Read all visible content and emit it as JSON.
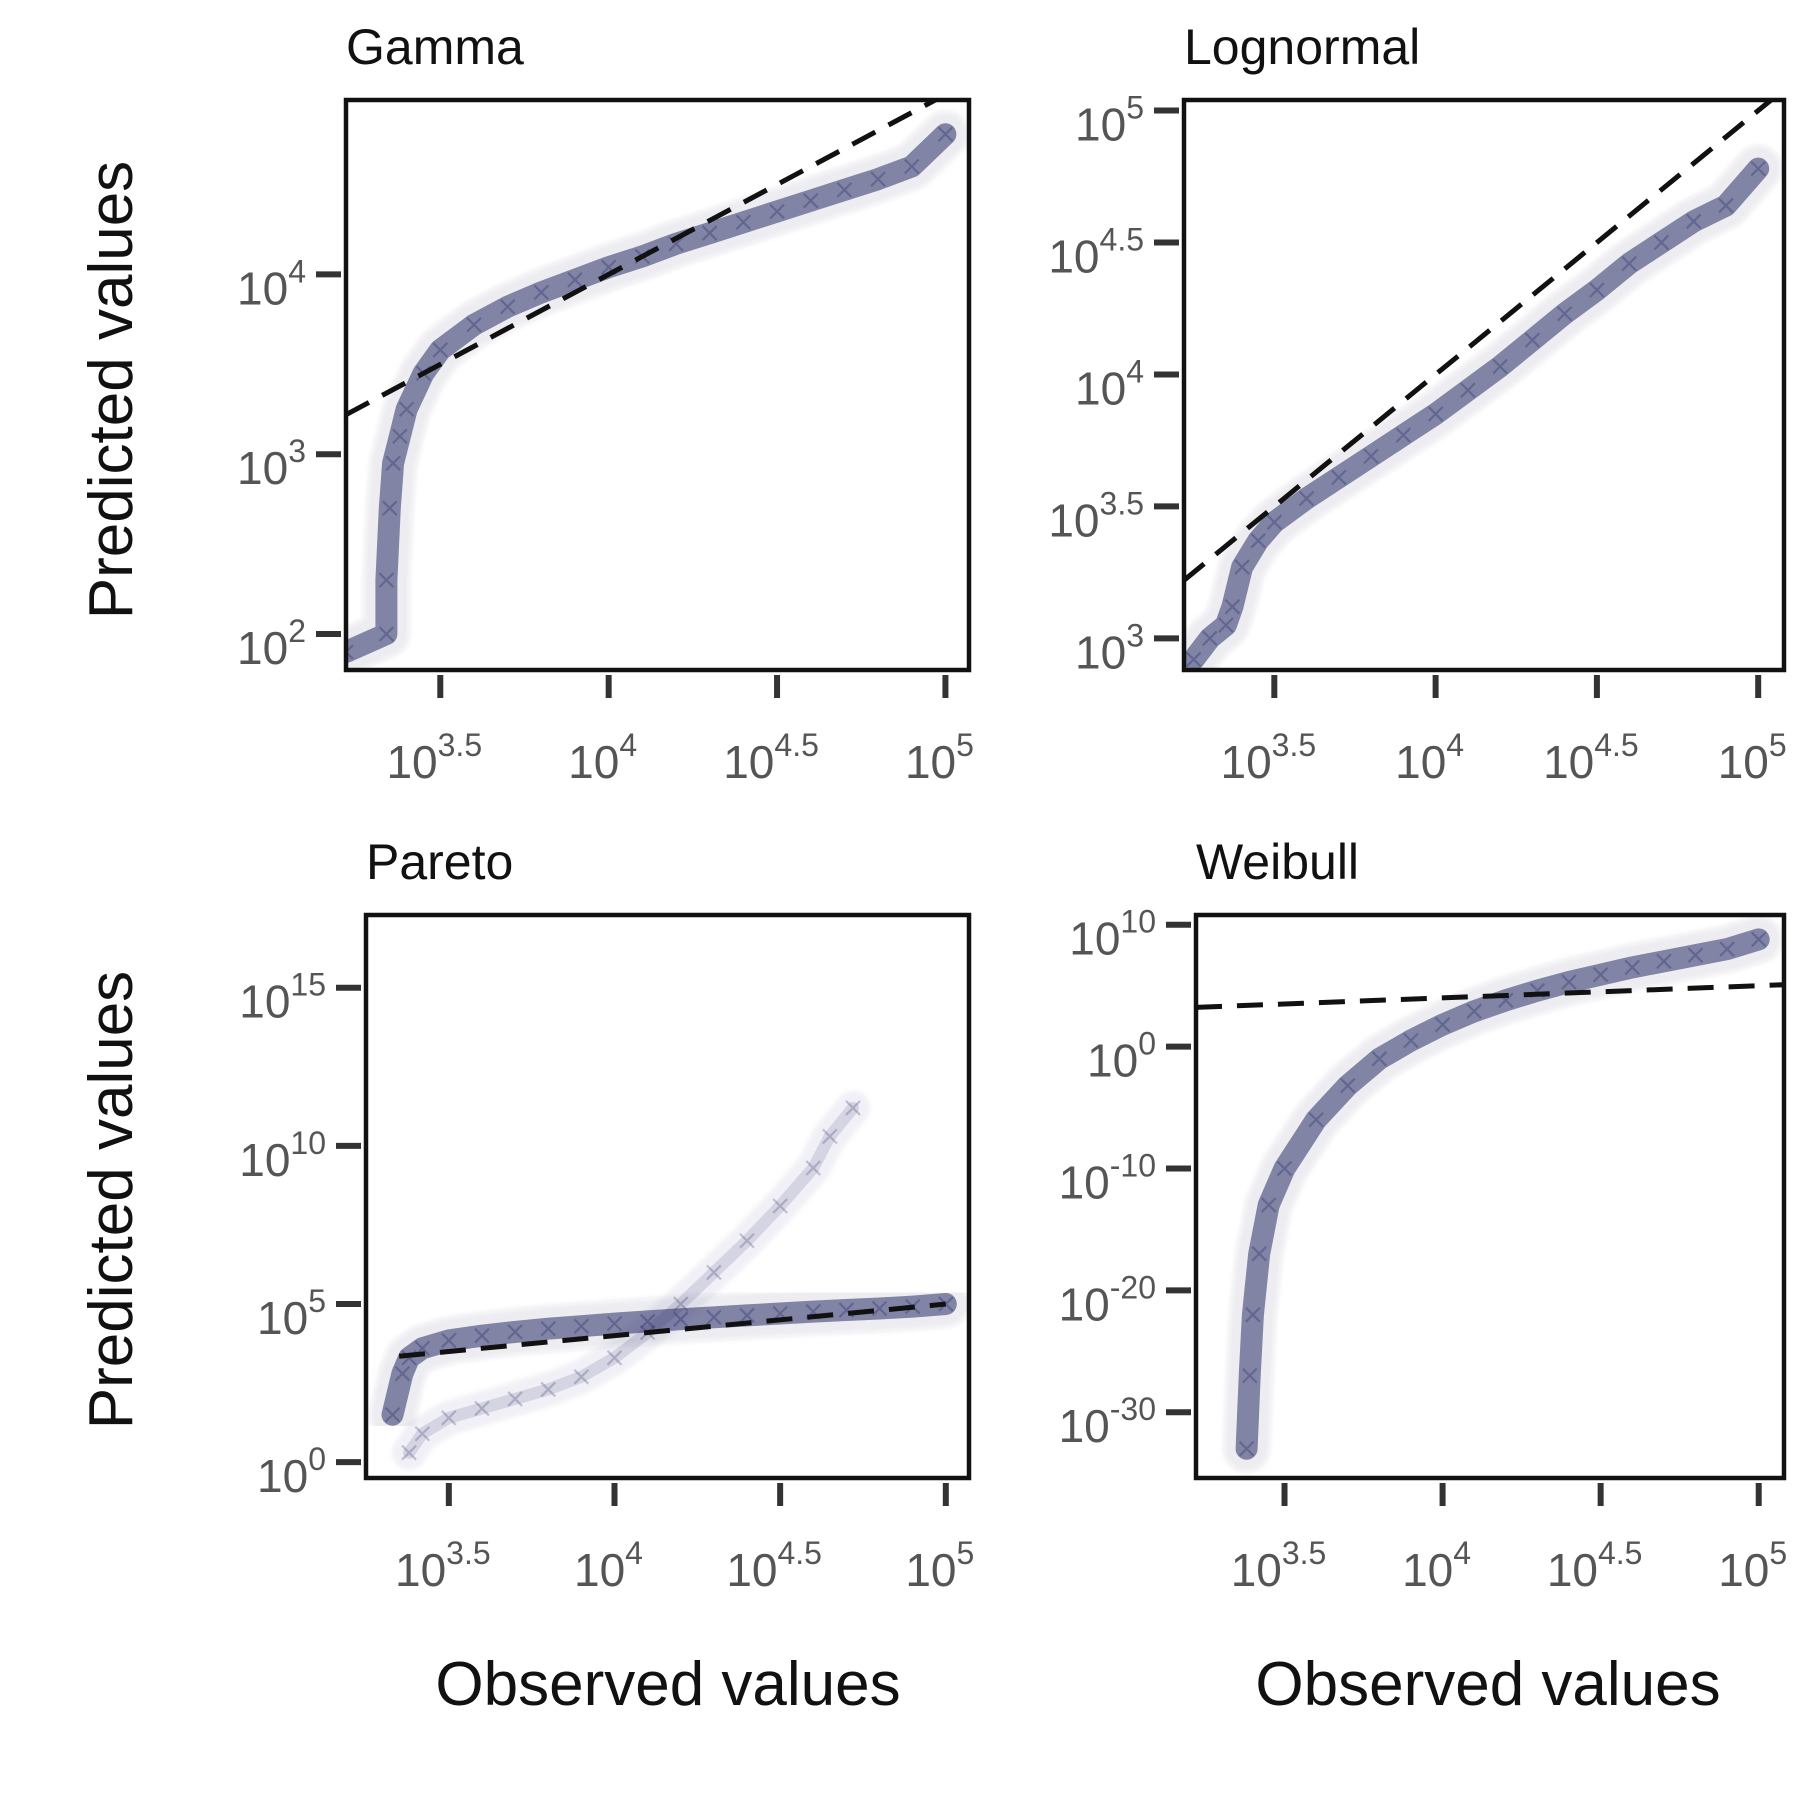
{
  "figure": {
    "ylabel": "Predicted values",
    "xlabel": "Observed values",
    "point_color": "#2a2d68",
    "reference_line_color": "#111111"
  },
  "chart_data": [
    {
      "type": "scatter",
      "title": "Gamma",
      "xscale": "log10",
      "yscale": "log10",
      "xlim": [
        3.22,
        5.07
      ],
      "ylim": [
        1.8,
        4.97
      ],
      "xticks": [
        {
          "base": "10",
          "exp": "3.5",
          "value": 3.5
        },
        {
          "base": "10",
          "exp": "4",
          "value": 4
        },
        {
          "base": "10",
          "exp": "4.5",
          "value": 4.5
        },
        {
          "base": "10",
          "exp": "5",
          "value": 5
        }
      ],
      "yticks": [
        {
          "base": "10",
          "exp": "2",
          "value": 2
        },
        {
          "base": "10",
          "exp": "3",
          "value": 3
        },
        {
          "base": "10",
          "exp": "4",
          "value": 4
        }
      ],
      "reference_line": {
        "x": [
          3.22,
          5.07
        ],
        "y": [
          3.22,
          5.07
        ]
      },
      "series": [
        {
          "x": [
            3.22,
            3.34,
            3.34,
            3.35,
            3.36,
            3.38,
            3.4,
            3.45,
            3.5,
            3.6,
            3.7,
            3.8,
            3.9,
            4.0,
            4.1,
            4.2,
            4.3,
            4.4,
            4.5,
            4.6,
            4.7,
            4.8,
            4.9,
            5.0
          ],
          "y": [
            1.9,
            2.0,
            2.3,
            2.7,
            2.95,
            3.1,
            3.25,
            3.45,
            3.58,
            3.72,
            3.82,
            3.9,
            3.97,
            4.04,
            4.1,
            4.17,
            4.23,
            4.29,
            4.35,
            4.41,
            4.47,
            4.53,
            4.6,
            4.78
          ]
        }
      ]
    },
    {
      "type": "scatter",
      "title": "Lognormal",
      "xscale": "log10",
      "yscale": "log10",
      "xlim": [
        3.22,
        5.08
      ],
      "ylim": [
        2.88,
        5.04
      ],
      "xticks": [
        {
          "base": "10",
          "exp": "3.5",
          "value": 3.5
        },
        {
          "base": "10",
          "exp": "4",
          "value": 4
        },
        {
          "base": "10",
          "exp": "4.5",
          "value": 4.5
        },
        {
          "base": "10",
          "exp": "5",
          "value": 5
        }
      ],
      "yticks": [
        {
          "base": "10",
          "exp": "3",
          "value": 3
        },
        {
          "base": "10",
          "exp": "3.5",
          "value": 3.5
        },
        {
          "base": "10",
          "exp": "4",
          "value": 4
        },
        {
          "base": "10",
          "exp": "4.5",
          "value": 4.5
        },
        {
          "base": "10",
          "exp": "5",
          "value": 5
        }
      ],
      "reference_line": {
        "x": [
          3.22,
          5.08
        ],
        "y": [
          3.22,
          5.08
        ]
      },
      "series": [
        {
          "x": [
            3.25,
            3.3,
            3.35,
            3.37,
            3.4,
            3.45,
            3.5,
            3.6,
            3.7,
            3.8,
            3.9,
            4.0,
            4.1,
            4.2,
            4.3,
            4.4,
            4.5,
            4.6,
            4.7,
            4.8,
            4.9,
            5.0
          ],
          "y": [
            2.92,
            3.0,
            3.05,
            3.12,
            3.27,
            3.37,
            3.44,
            3.53,
            3.61,
            3.69,
            3.77,
            3.85,
            3.94,
            4.03,
            4.13,
            4.23,
            4.32,
            4.42,
            4.5,
            4.58,
            4.64,
            4.78
          ]
        }
      ]
    },
    {
      "type": "scatter",
      "title": "Pareto",
      "xscale": "log10",
      "yscale": "log10",
      "xlim": [
        3.25,
        5.07
      ],
      "ylim": [
        -0.5,
        17.3
      ],
      "xticks": [
        {
          "base": "10",
          "exp": "3.5",
          "value": 3.5
        },
        {
          "base": "10",
          "exp": "4",
          "value": 4
        },
        {
          "base": "10",
          "exp": "4.5",
          "value": 4.5
        },
        {
          "base": "10",
          "exp": "5",
          "value": 5
        }
      ],
      "yticks": [
        {
          "base": "10",
          "exp": "0",
          "value": 0
        },
        {
          "base": "10",
          "exp": "5",
          "value": 5
        },
        {
          "base": "10",
          "exp": "10",
          "value": 10
        },
        {
          "base": "10",
          "exp": "15",
          "value": 15
        }
      ],
      "reference_line": {
        "x": [
          3.35,
          5.0
        ],
        "y": [
          3.35,
          5.0
        ]
      },
      "series": [
        {
          "x": [
            3.33,
            3.36,
            3.38,
            3.42,
            3.5,
            3.6,
            3.7,
            3.8,
            3.9,
            4.0,
            4.1,
            4.2,
            4.3,
            4.4,
            4.5,
            4.6,
            4.7,
            4.8,
            4.9,
            5.0
          ],
          "y": [
            1.5,
            2.8,
            3.3,
            3.6,
            3.85,
            4.0,
            4.12,
            4.22,
            4.3,
            4.38,
            4.45,
            4.52,
            4.58,
            4.64,
            4.7,
            4.76,
            4.81,
            4.86,
            4.92,
            5.0
          ]
        },
        {
          "x": [
            3.38,
            3.42,
            3.5,
            3.6,
            3.7,
            3.8,
            3.9,
            4.0,
            4.1,
            4.2,
            4.3,
            4.4,
            4.5,
            4.6,
            4.65,
            4.72
          ],
          "y": [
            0.3,
            0.9,
            1.4,
            1.7,
            2.0,
            2.3,
            2.7,
            3.3,
            4.1,
            5.0,
            6.0,
            7.0,
            8.1,
            9.3,
            10.3,
            11.2
          ]
        }
      ]
    },
    {
      "type": "scatter",
      "title": "Weibull",
      "xscale": "log10",
      "yscale": "log10",
      "xlim": [
        3.22,
        5.08
      ],
      "ylim": [
        -35.4,
        10.8
      ],
      "xticks": [
        {
          "base": "10",
          "exp": "3.5",
          "value": 3.5
        },
        {
          "base": "10",
          "exp": "4",
          "value": 4
        },
        {
          "base": "10",
          "exp": "4.5",
          "value": 4.5
        },
        {
          "base": "10",
          "exp": "5",
          "value": 5
        }
      ],
      "yticks": [
        {
          "base": "10",
          "exp": "-30",
          "value": -30
        },
        {
          "base": "10",
          "exp": "-20",
          "value": -20
        },
        {
          "base": "10",
          "exp": "-10",
          "value": -10
        },
        {
          "base": "10",
          "exp": "0",
          "value": 0
        },
        {
          "base": "10",
          "exp": "10",
          "value": 10
        }
      ],
      "reference_line": {
        "x": [
          3.22,
          5.08
        ],
        "y": [
          3.22,
          5.08
        ]
      },
      "series": [
        {
          "x": [
            3.38,
            3.39,
            3.4,
            3.42,
            3.45,
            3.5,
            3.6,
            3.7,
            3.8,
            3.9,
            4.0,
            4.1,
            4.2,
            4.3,
            4.4,
            4.5,
            4.6,
            4.7,
            4.8,
            4.9,
            5.0
          ],
          "y": [
            -33.0,
            -27.0,
            -22.0,
            -17.0,
            -13.0,
            -10.0,
            -6.0,
            -3.2,
            -1.0,
            0.5,
            1.8,
            2.9,
            3.8,
            4.6,
            5.3,
            5.9,
            6.5,
            7.0,
            7.5,
            8.0,
            8.8
          ]
        }
      ]
    }
  ]
}
